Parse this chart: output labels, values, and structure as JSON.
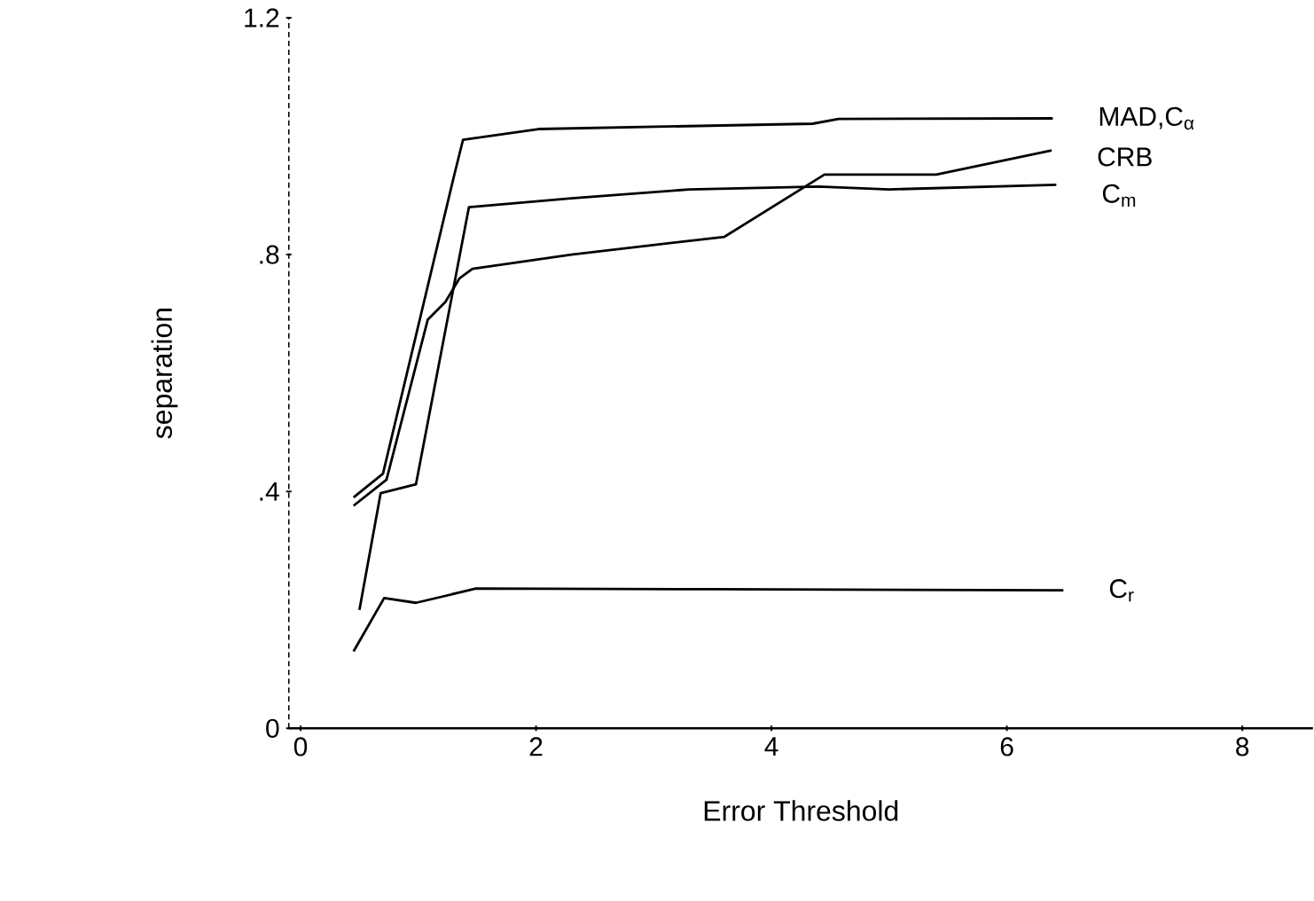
{
  "chart_data": {
    "type": "line",
    "xlabel": "Error Threshold",
    "ylabel": "separation",
    "xlim": [
      -0.1,
      8.6
    ],
    "ylim": [
      0,
      1.2
    ],
    "xticks": [
      0,
      2,
      4,
      6,
      8
    ],
    "yticks": [
      0,
      {
        "value": 0.4,
        "label": ".4"
      },
      {
        "value": 0.8,
        "label": ".8"
      },
      {
        "value": 1.2,
        "label": "1.2"
      }
    ],
    "series": [
      {
        "name": "MAD,C$_{α}$",
        "color": "#000000",
        "x": [
          0.45,
          0.7,
          1.3,
          1.38,
          2.02,
          4.35,
          4.57,
          6.39
        ],
        "values": [
          0.39,
          0.43,
          0.93,
          0.994,
          1.012,
          1.021,
          1.029,
          1.03
        ]
      },
      {
        "name": "CRB",
        "color": "#000000",
        "x": [
          0.45,
          0.73,
          1.08,
          1.23,
          1.35,
          1.46,
          2.3,
          3.6,
          4.45,
          5.4,
          6.38
        ],
        "values": [
          0.376,
          0.42,
          0.69,
          0.72,
          0.76,
          0.776,
          0.8,
          0.83,
          0.935,
          0.935,
          0.976
        ]
      },
      {
        "name": "C$_{m}$",
        "color": "#000000",
        "x": [
          0.5,
          0.68,
          0.98,
          1.43,
          2.3,
          3.3,
          4.4,
          5.0,
          6.42
        ],
        "values": [
          0.2,
          0.397,
          0.412,
          0.88,
          0.895,
          0.91,
          0.915,
          0.91,
          0.918
        ]
      },
      {
        "name": "C$_{r}$",
        "color": "#000000",
        "x": [
          0.45,
          0.71,
          0.98,
          1.49,
          3.5,
          6.48
        ],
        "values": [
          0.13,
          0.22,
          0.212,
          0.236,
          0.235,
          0.233
        ]
      }
    ]
  }
}
